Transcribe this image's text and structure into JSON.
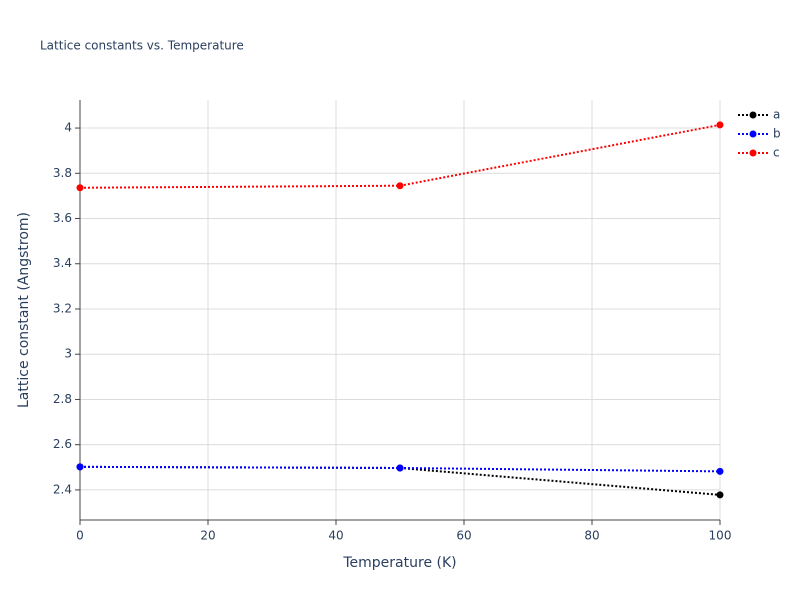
{
  "chart_data": {
    "type": "line",
    "title": "Lattice constants vs. Temperature",
    "xlabel": "Temperature (K)",
    "ylabel": "Lattice constant (Angstrom)",
    "x": [
      0,
      50,
      100
    ],
    "series": [
      {
        "name": "a",
        "color": "#000000",
        "values": [
          2.502,
          2.497,
          2.378
        ]
      },
      {
        "name": "b",
        "color": "#0000ff",
        "values": [
          2.502,
          2.497,
          2.482
        ]
      },
      {
        "name": "c",
        "color": "#ff0000",
        "values": [
          3.736,
          3.745,
          4.014
        ]
      }
    ],
    "xlim": [
      0,
      100
    ],
    "xticks": [
      0,
      20,
      40,
      60,
      80,
      100
    ],
    "ylim": [
      2.267,
      4.124
    ],
    "yticks": [
      2.4,
      2.6,
      2.8,
      3,
      3.2,
      3.4,
      3.6,
      3.8,
      4
    ],
    "grid": true,
    "legend": "right"
  }
}
